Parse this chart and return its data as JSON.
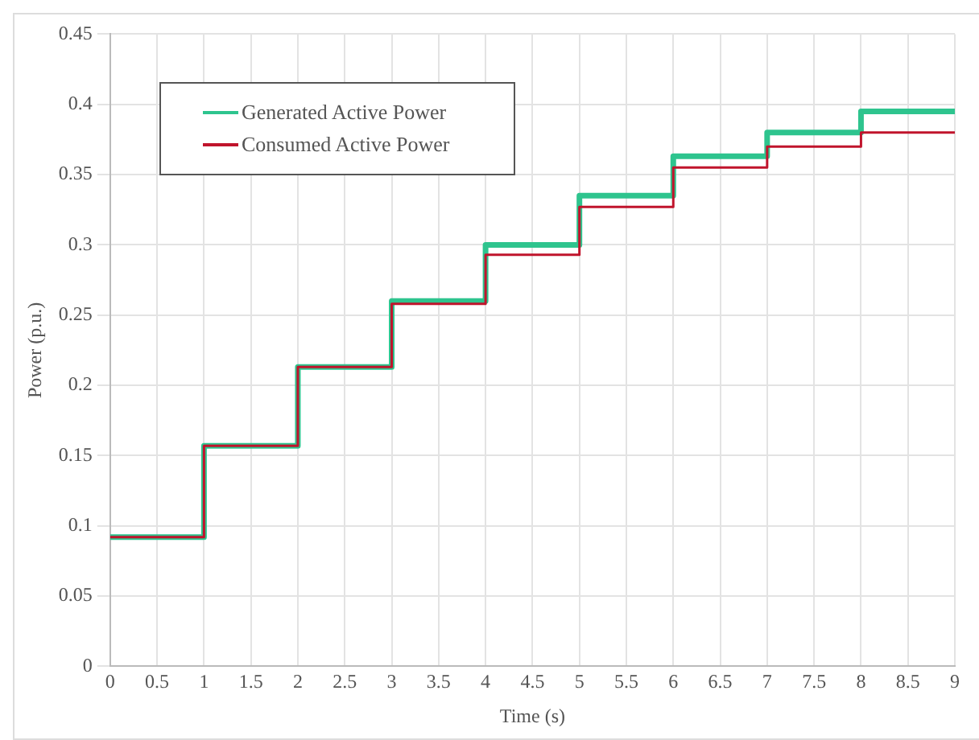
{
  "chart_data": {
    "type": "step",
    "xlabel": "Time (s)",
    "ylabel": "Power (p.u.)",
    "x": [
      0,
      1,
      2,
      3,
      4,
      5,
      6,
      7,
      8,
      9
    ],
    "series": [
      {
        "name": "Generated Active Power",
        "color": "#2ec48e",
        "values": [
          0.092,
          0.157,
          0.213,
          0.26,
          0.3,
          0.335,
          0.363,
          0.38,
          0.395,
          0.395
        ]
      },
      {
        "name": "Consumed Active Power",
        "color": "#c0142c",
        "values": [
          0.092,
          0.157,
          0.213,
          0.258,
          0.293,
          0.327,
          0.355,
          0.37,
          0.38,
          0.38
        ]
      }
    ],
    "xlim": [
      0,
      9
    ],
    "xticks": [
      0,
      0.5,
      1,
      1.5,
      2,
      2.5,
      3,
      3.5,
      4,
      4.5,
      5,
      5.5,
      6,
      6.5,
      7,
      7.5,
      8,
      8.5,
      9
    ],
    "ylim": [
      0,
      0.45
    ],
    "yticks": [
      0,
      0.05,
      0.1,
      0.15,
      0.2,
      0.25,
      0.3,
      0.35,
      0.4,
      0.45
    ],
    "grid": true,
    "legend": "top left",
    "marker": "none",
    "line_style": "solid"
  }
}
